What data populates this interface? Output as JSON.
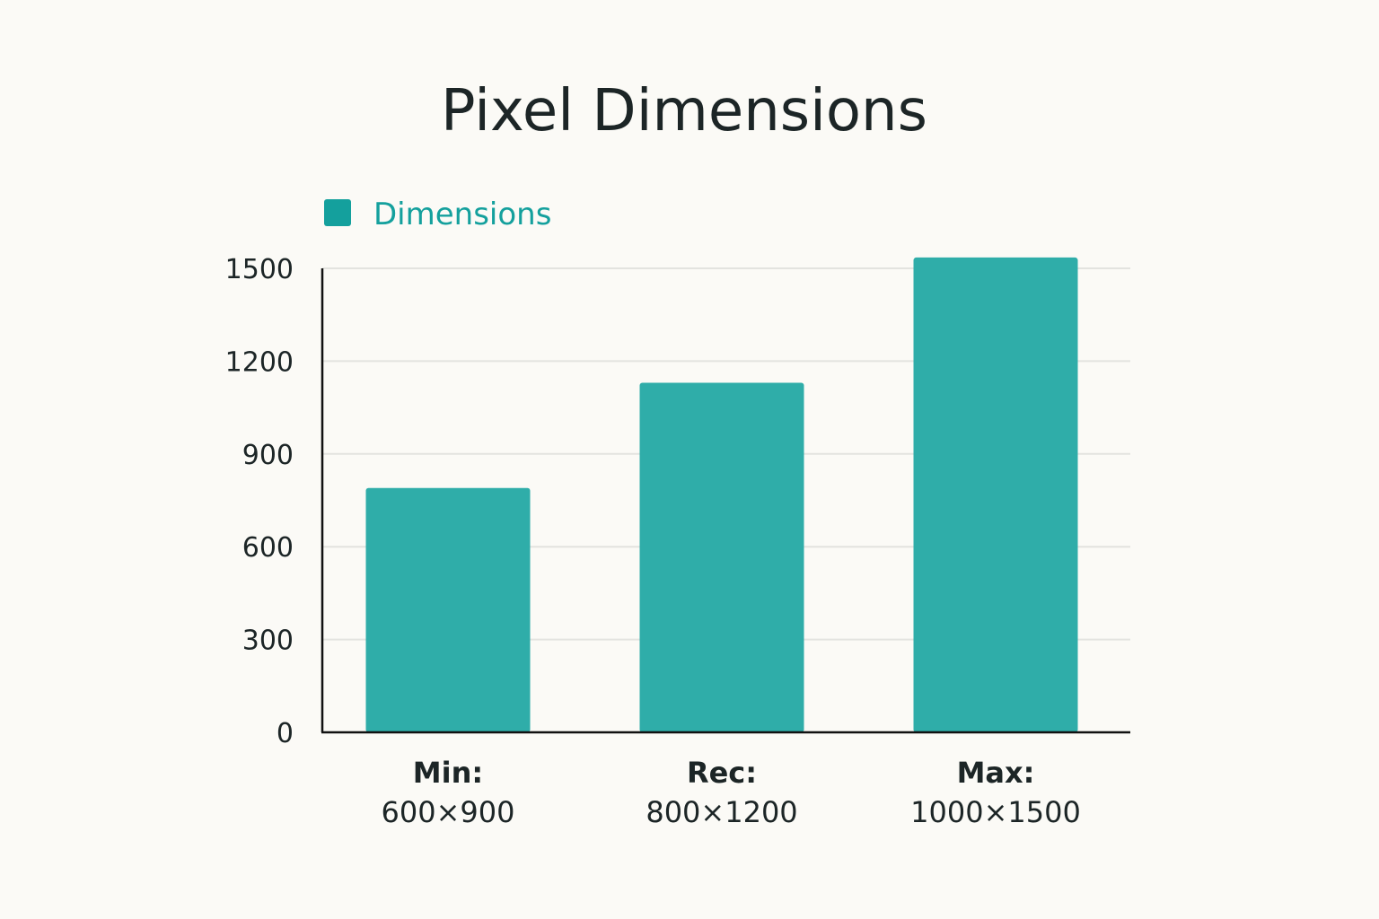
{
  "chart_data": {
    "type": "bar",
    "title": "Pixel Dimensions",
    "xlabel": "",
    "ylabel": "",
    "categories": [
      {
        "name": "Min:",
        "dims": "600×900"
      },
      {
        "name": "Rec:",
        "dims": "800×1200"
      },
      {
        "name": "Max:",
        "dims": "1000×1500"
      }
    ],
    "series": [
      {
        "name": "Dimensions",
        "values": [
          790,
          1130,
          1535
        ]
      }
    ],
    "ylim": [
      0,
      1500
    ],
    "yticks": [
      "0",
      "300",
      "600",
      "900",
      "1200",
      "1500"
    ],
    "grid": true,
    "legend_position": "top-left",
    "colors": {
      "bar": "#2fada9",
      "legend_swatch": "#14a09d",
      "legend_text": "#14a09d",
      "text": "#1c2526",
      "axis": "#111111",
      "grid": "#e3e3df",
      "background": "#fbfaf6"
    }
  }
}
